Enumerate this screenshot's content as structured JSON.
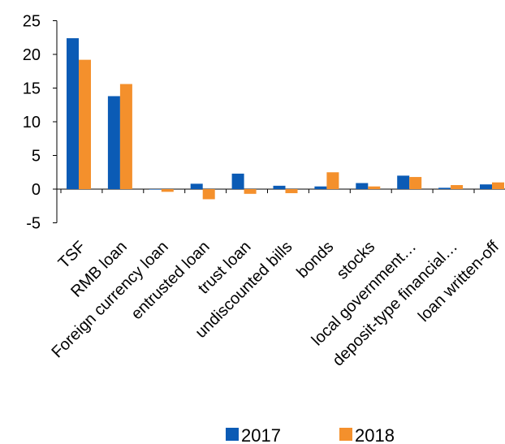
{
  "chart_data": {
    "type": "bar",
    "categories": [
      "TSF",
      "RMB loan",
      "Foreign currency loan",
      "entrusted loan",
      "trust loan",
      "undiscounted bills",
      "bonds",
      "stocks",
      "local government…",
      "deposit-type financial…",
      "loan written-off"
    ],
    "series": [
      {
        "name": "2017",
        "color": "#0b5bb5",
        "values": [
          22.4,
          13.8,
          0.0,
          0.8,
          2.3,
          0.5,
          0.4,
          0.9,
          2.0,
          0.2,
          0.7
        ]
      },
      {
        "name": "2018",
        "color": "#f4902c",
        "values": [
          19.2,
          15.6,
          -0.4,
          -1.5,
          -0.7,
          -0.6,
          2.5,
          0.4,
          1.8,
          0.6,
          1.0
        ]
      }
    ],
    "yticks": [
      "-5",
      "0",
      "5",
      "10",
      "15",
      "20",
      "25"
    ],
    "ylim": [
      -5,
      25
    ],
    "legend_position": "bottom",
    "grid": false
  }
}
